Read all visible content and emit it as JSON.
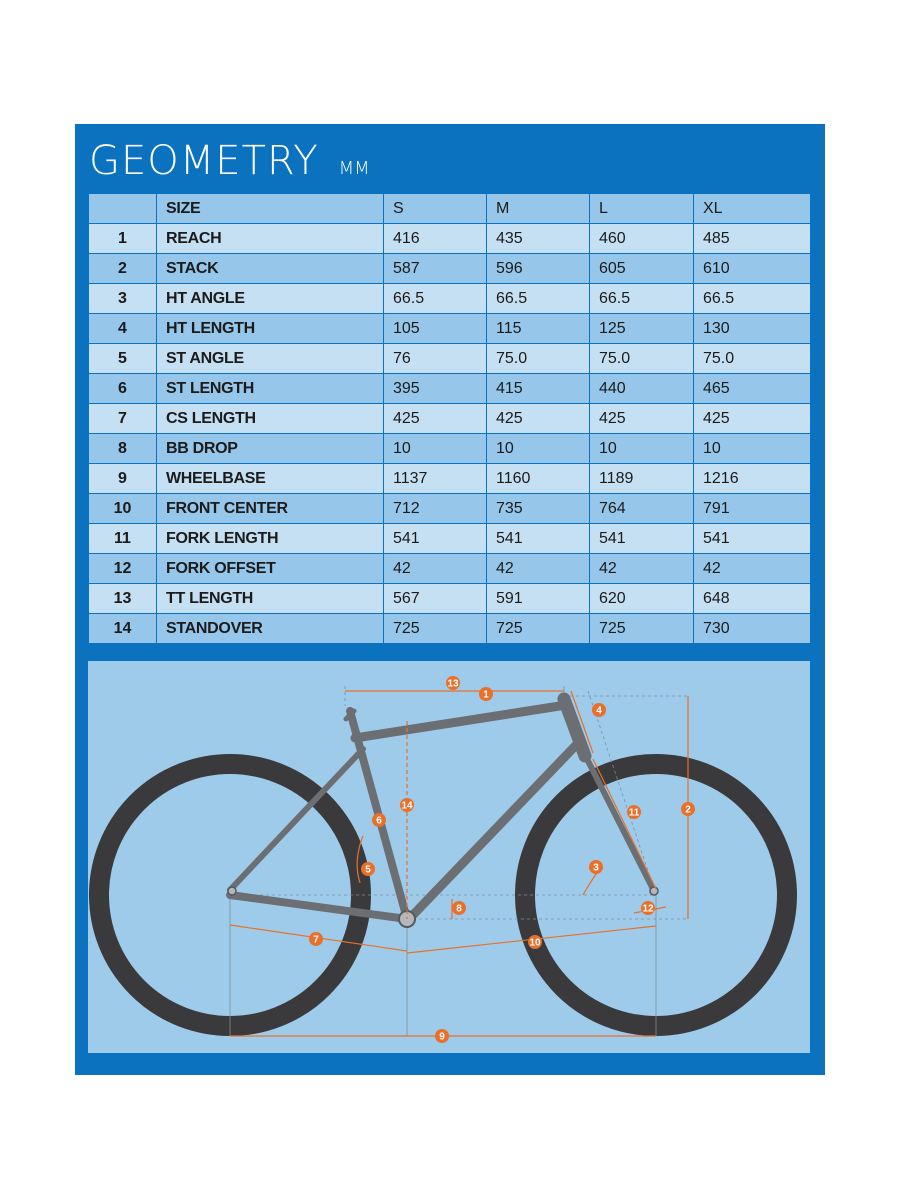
{
  "header": {
    "title": "GEOMETRY",
    "unit": "MM"
  },
  "table": {
    "columns": [
      "",
      "SIZE",
      "S",
      "M",
      "L",
      "XL"
    ],
    "rows": [
      {
        "num": "1",
        "param": "REACH",
        "s": "416",
        "m": "435",
        "l": "460",
        "xl": "485"
      },
      {
        "num": "2",
        "param": "STACK",
        "s": "587",
        "m": "596",
        "l": "605",
        "xl": "610"
      },
      {
        "num": "3",
        "param": "HT ANGLE",
        "s": "66.5",
        "m": "66.5",
        "l": "66.5",
        "xl": "66.5"
      },
      {
        "num": "4",
        "param": "HT LENGTH",
        "s": "105",
        "m": "115",
        "l": "125",
        "xl": "130"
      },
      {
        "num": "5",
        "param": "ST ANGLE",
        "s": "76",
        "m": "75.0",
        "l": "75.0",
        "xl": "75.0"
      },
      {
        "num": "6",
        "param": "ST LENGTH",
        "s": "395",
        "m": "415",
        "l": "440",
        "xl": "465"
      },
      {
        "num": "7",
        "param": "CS LENGTH",
        "s": "425",
        "m": "425",
        "l": "425",
        "xl": "425"
      },
      {
        "num": "8",
        "param": "BB DROP",
        "s": "10",
        "m": "10",
        "l": "10",
        "xl": "10"
      },
      {
        "num": "9",
        "param": "WHEELBASE",
        "s": "1137",
        "m": "1160",
        "l": "1189",
        "xl": "1216"
      },
      {
        "num": "10",
        "param": "FRONT CENTER",
        "s": "712",
        "m": "735",
        "l": "764",
        "xl": "791"
      },
      {
        "num": "11",
        "param": "FORK LENGTH",
        "s": "541",
        "m": "541",
        "l": "541",
        "xl": "541"
      },
      {
        "num": "12",
        "param": "FORK OFFSET",
        "s": "42",
        "m": "42",
        "l": "42",
        "xl": "42"
      },
      {
        "num": "13",
        "param": "TT LENGTH",
        "s": "567",
        "m": "591",
        "l": "620",
        "xl": "648"
      },
      {
        "num": "14",
        "param": "STANDOVER",
        "s": "725",
        "m": "725",
        "l": "725",
        "xl": "730"
      }
    ]
  },
  "diagram": {
    "labels": {
      "b1": "1",
      "b2": "2",
      "b3": "3",
      "b4": "4",
      "b5": "5",
      "b6": "6",
      "b7": "7",
      "b8": "8",
      "b9": "9",
      "b10": "10",
      "b11": "11",
      "b12": "12",
      "b13": "13",
      "b14": "14"
    }
  },
  "colors": {
    "panel_blue": "#0a72bf",
    "row_light": "#c6e0f3",
    "row_dark": "#96c7ea",
    "diagram_bg": "#9fcbea",
    "frame_gray": "#6b6e72",
    "tire": "#3a3a3c",
    "dimension_orange": "#e8702a"
  }
}
